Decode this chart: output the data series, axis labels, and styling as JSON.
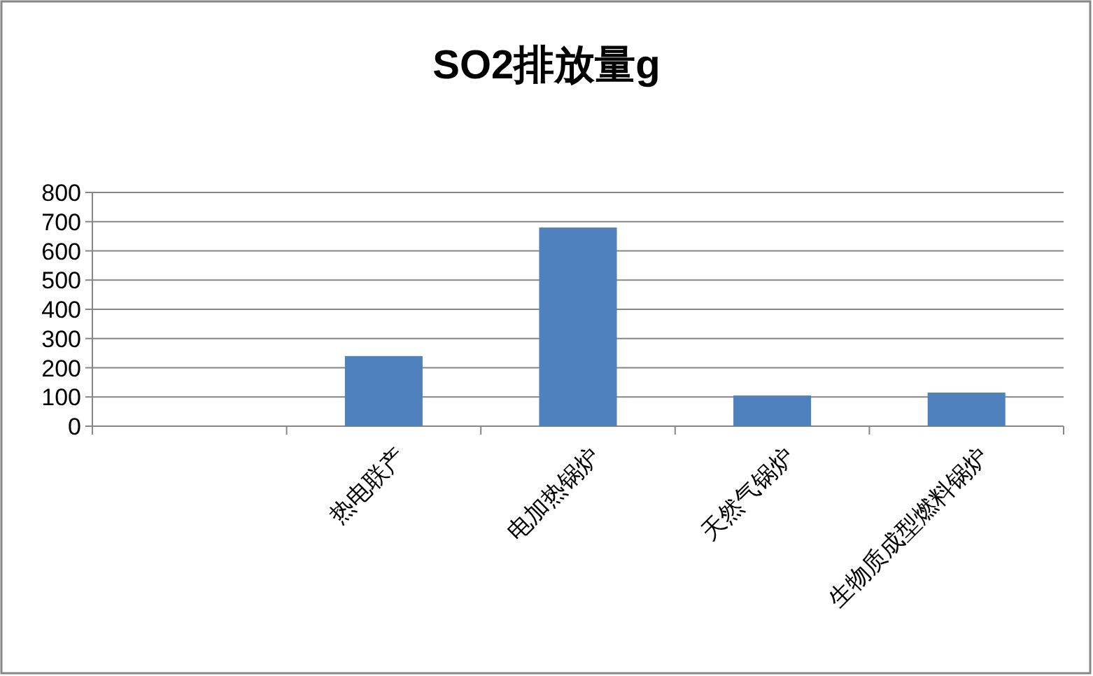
{
  "chart_data": {
    "type": "bar",
    "title": "SO2排放量g",
    "categories": [
      null,
      "热电联产",
      "电加热锅炉",
      "天然气锅炉",
      "生物质成型燃料锅炉"
    ],
    "values": [
      null,
      240,
      680,
      105,
      115
    ],
    "color": "#4f81bd",
    "ylim": [
      0,
      800
    ],
    "yticks": [
      0,
      100,
      200,
      300,
      400,
      500,
      600,
      700,
      800
    ],
    "grid": "y"
  }
}
